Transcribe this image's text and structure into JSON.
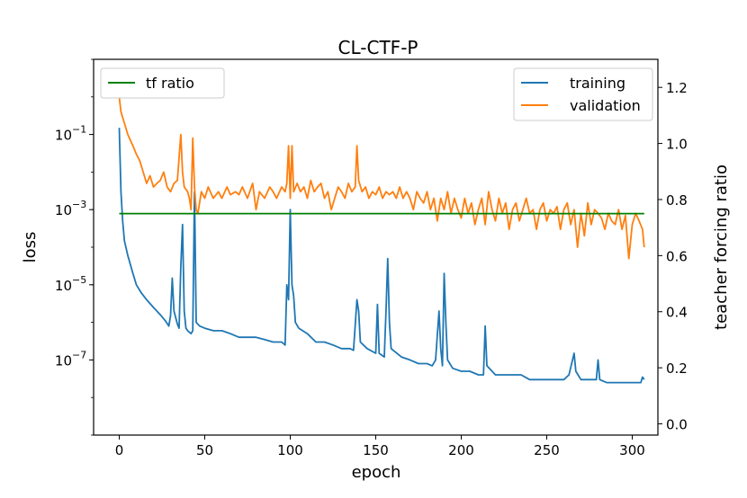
{
  "chart_data": {
    "type": "line",
    "title": "CL-CTF-P",
    "xlabel": "epoch",
    "ylabel": "loss",
    "y2label": "teacher forcing ratio",
    "xlim": [
      -15,
      315
    ],
    "ylim": [
      1e-09,
      10
    ],
    "yscale": "log",
    "y2lim": [
      -0.04,
      1.3
    ],
    "x_ticks": [
      0,
      50,
      100,
      150,
      200,
      250,
      300
    ],
    "x_tick_labels": [
      "0",
      "50",
      "100",
      "150",
      "200",
      "250",
      "300"
    ],
    "y_ticks": [
      0.1,
      0.001,
      1e-05,
      1e-07
    ],
    "y_tick_labels": [
      {
        "base": "10",
        "exp": "−1"
      },
      {
        "base": "10",
        "exp": "−3"
      },
      {
        "base": "10",
        "exp": "−5"
      },
      {
        "base": "10",
        "exp": "−7"
      }
    ],
    "y2_ticks": [
      0.0,
      0.2,
      0.4,
      0.6,
      0.8,
      1.0,
      1.2
    ],
    "y2_tick_labels": [
      "0.0",
      "0.2",
      "0.4",
      "0.6",
      "0.8",
      "1.0",
      "1.2"
    ],
    "legend_left": {
      "placement": "upper-left",
      "entries": [
        "tf ratio"
      ]
    },
    "legend_right": {
      "placement": "upper-right",
      "entries": [
        "training",
        "validation"
      ]
    },
    "grid": false,
    "series": [
      {
        "name": "training",
        "axis": "left",
        "color": "#1f77b4",
        "points": [
          [
            0,
            0.15
          ],
          [
            1,
            0.003
          ],
          [
            2,
            0.0005
          ],
          [
            3,
            0.00015
          ],
          [
            5,
            6e-05
          ],
          [
            8,
            2e-05
          ],
          [
            10,
            1e-05
          ],
          [
            13,
            6e-06
          ],
          [
            16,
            4e-06
          ],
          [
            20,
            2.5e-06
          ],
          [
            24,
            1.6e-06
          ],
          [
            27,
            1.1e-06
          ],
          [
            29,
            8e-07
          ],
          [
            30,
            1.5e-06
          ],
          [
            31,
            1.5e-05
          ],
          [
            32,
            2e-06
          ],
          [
            34,
            9e-07
          ],
          [
            35,
            7e-07
          ],
          [
            36,
            3e-05
          ],
          [
            37,
            0.0004
          ],
          [
            38,
            2e-06
          ],
          [
            39,
            7e-07
          ],
          [
            40,
            6e-07
          ],
          [
            42,
            5e-07
          ],
          [
            43,
            6e-07
          ],
          [
            44,
            0.003
          ],
          [
            45,
            1e-06
          ],
          [
            47,
            8e-07
          ],
          [
            50,
            7e-07
          ],
          [
            55,
            6e-07
          ],
          [
            60,
            6e-07
          ],
          [
            65,
            5e-07
          ],
          [
            70,
            4e-07
          ],
          [
            75,
            4e-07
          ],
          [
            80,
            4e-07
          ],
          [
            85,
            3.5e-07
          ],
          [
            90,
            3e-07
          ],
          [
            95,
            3e-07
          ],
          [
            97,
            2.5e-07
          ],
          [
            98,
            1e-05
          ],
          [
            99,
            4e-06
          ],
          [
            100,
            0.001
          ],
          [
            101,
            1e-05
          ],
          [
            102,
            5e-06
          ],
          [
            103,
            1e-06
          ],
          [
            105,
            7e-07
          ],
          [
            110,
            5e-07
          ],
          [
            115,
            3e-07
          ],
          [
            120,
            3e-07
          ],
          [
            125,
            2.5e-07
          ],
          [
            130,
            2e-07
          ],
          [
            135,
            2e-07
          ],
          [
            137,
            1.8e-07
          ],
          [
            139,
            4e-06
          ],
          [
            140,
            2e-06
          ],
          [
            141,
            3e-07
          ],
          [
            145,
            2e-07
          ],
          [
            150,
            1.5e-07
          ],
          [
            151,
            3e-06
          ],
          [
            152,
            1.5e-07
          ],
          [
            155,
            1.2e-07
          ],
          [
            156,
            2e-06
          ],
          [
            157,
            5e-05
          ],
          [
            158,
            1e-06
          ],
          [
            159,
            2e-07
          ],
          [
            165,
            1.2e-07
          ],
          [
            170,
            1e-07
          ],
          [
            175,
            8e-08
          ],
          [
            180,
            8e-08
          ],
          [
            183,
            7e-08
          ],
          [
            185,
            1e-07
          ],
          [
            187,
            2e-06
          ],
          [
            188,
            2e-07
          ],
          [
            189,
            7e-08
          ],
          [
            190,
            2e-05
          ],
          [
            191,
            1e-06
          ],
          [
            192,
            1e-07
          ],
          [
            195,
            6e-08
          ],
          [
            200,
            5e-08
          ],
          [
            205,
            5e-08
          ],
          [
            210,
            4e-08
          ],
          [
            213,
            4e-08
          ],
          [
            214,
            8e-07
          ],
          [
            215,
            7e-08
          ],
          [
            220,
            4e-08
          ],
          [
            225,
            4e-08
          ],
          [
            230,
            4e-08
          ],
          [
            235,
            4e-08
          ],
          [
            240,
            3e-08
          ],
          [
            245,
            3e-08
          ],
          [
            250,
            3e-08
          ],
          [
            255,
            3e-08
          ],
          [
            260,
            3e-08
          ],
          [
            263,
            4e-08
          ],
          [
            266,
            1.5e-07
          ],
          [
            267,
            5e-08
          ],
          [
            270,
            3e-08
          ],
          [
            275,
            3e-08
          ],
          [
            279,
            3e-08
          ],
          [
            280,
            1e-07
          ],
          [
            281,
            3e-08
          ],
          [
            285,
            2.5e-08
          ],
          [
            290,
            2.5e-08
          ],
          [
            295,
            2.5e-08
          ],
          [
            300,
            2.5e-08
          ],
          [
            305,
            2.5e-08
          ],
          [
            306,
            3.5e-08
          ],
          [
            307,
            3e-08
          ]
        ]
      },
      {
        "name": "validation",
        "axis": "left",
        "color": "#ff7f0e",
        "points": [
          [
            0,
            1
          ],
          [
            1,
            0.4
          ],
          [
            3,
            0.2
          ],
          [
            5,
            0.1
          ],
          [
            8,
            0.05
          ],
          [
            10,
            0.03
          ],
          [
            12,
            0.02
          ],
          [
            14,
            0.01
          ],
          [
            16,
            0.005
          ],
          [
            18,
            0.008
          ],
          [
            20,
            0.004
          ],
          [
            22,
            0.005
          ],
          [
            24,
            0.006
          ],
          [
            26,
            0.01
          ],
          [
            28,
            0.004
          ],
          [
            30,
            0.003
          ],
          [
            32,
            0.005
          ],
          [
            34,
            0.006
          ],
          [
            36,
            0.1
          ],
          [
            37,
            0.01
          ],
          [
            38,
            0.004
          ],
          [
            40,
            0.003
          ],
          [
            41,
            0.002
          ],
          [
            42,
            0.001
          ],
          [
            43,
            0.08
          ],
          [
            44,
            0.004
          ],
          [
            45,
            0.001
          ],
          [
            46,
            0.0008
          ],
          [
            48,
            0.003
          ],
          [
            50,
            0.002
          ],
          [
            52,
            0.004
          ],
          [
            55,
            0.002
          ],
          [
            58,
            0.003
          ],
          [
            60,
            0.002
          ],
          [
            63,
            0.004
          ],
          [
            65,
            0.0025
          ],
          [
            68,
            0.003
          ],
          [
            70,
            0.0025
          ],
          [
            72,
            0.004
          ],
          [
            75,
            0.002
          ],
          [
            78,
            0.005
          ],
          [
            80,
            0.001
          ],
          [
            82,
            0.003
          ],
          [
            85,
            0.002
          ],
          [
            88,
            0.004
          ],
          [
            90,
            0.003
          ],
          [
            92,
            0.002
          ],
          [
            95,
            0.004
          ],
          [
            97,
            0.003
          ],
          [
            98,
            0.005
          ],
          [
            99,
            0.05
          ],
          [
            100,
            0.002
          ],
          [
            101,
            0.05
          ],
          [
            102,
            0.003
          ],
          [
            104,
            0.005
          ],
          [
            106,
            0.003
          ],
          [
            108,
            0.004
          ],
          [
            110,
            0.002
          ],
          [
            112,
            0.006
          ],
          [
            114,
            0.003
          ],
          [
            116,
            0.004
          ],
          [
            118,
            0.005
          ],
          [
            120,
            0.002
          ],
          [
            122,
            0.003
          ],
          [
            124,
            0.001
          ],
          [
            126,
            0.002
          ],
          [
            128,
            0.004
          ],
          [
            130,
            0.003
          ],
          [
            132,
            0.002
          ],
          [
            134,
            0.005
          ],
          [
            136,
            0.003
          ],
          [
            138,
            0.004
          ],
          [
            139,
            0.05
          ],
          [
            140,
            0.006
          ],
          [
            142,
            0.003
          ],
          [
            144,
            0.004
          ],
          [
            146,
            0.002
          ],
          [
            148,
            0.003
          ],
          [
            150,
            0.0025
          ],
          [
            152,
            0.004
          ],
          [
            154,
            0.002
          ],
          [
            156,
            0.003
          ],
          [
            158,
            0.0025
          ],
          [
            160,
            0.003
          ],
          [
            162,
            0.002
          ],
          [
            164,
            0.004
          ],
          [
            166,
            0.002
          ],
          [
            168,
            0.003
          ],
          [
            170,
            0.002
          ],
          [
            172,
            0.001
          ],
          [
            174,
            0.003
          ],
          [
            176,
            0.002
          ],
          [
            178,
            0.0015
          ],
          [
            180,
            0.003
          ],
          [
            182,
            0.001
          ],
          [
            184,
            0.002
          ],
          [
            186,
            0.0005
          ],
          [
            188,
            0.002
          ],
          [
            190,
            0.001
          ],
          [
            192,
            0.003
          ],
          [
            194,
            0.0008
          ],
          [
            196,
            0.002
          ],
          [
            198,
            0.001
          ],
          [
            200,
            0.0006
          ],
          [
            202,
            0.002
          ],
          [
            204,
            0.0008
          ],
          [
            206,
            0.0015
          ],
          [
            208,
            0.0004
          ],
          [
            210,
            0.001
          ],
          [
            212,
            0.002
          ],
          [
            214,
            0.0004
          ],
          [
            216,
            0.003
          ],
          [
            218,
            0.001
          ],
          [
            220,
            0.0005
          ],
          [
            222,
            0.002
          ],
          [
            224,
            0.0008
          ],
          [
            226,
            0.0015
          ],
          [
            228,
            0.0003
          ],
          [
            230,
            0.001
          ],
          [
            232,
            0.0015
          ],
          [
            234,
            0.0005
          ],
          [
            236,
            0.001
          ],
          [
            238,
            0.002
          ],
          [
            240,
            0.0008
          ],
          [
            242,
            0.001
          ],
          [
            244,
            0.0003
          ],
          [
            246,
            0.001
          ],
          [
            248,
            0.0015
          ],
          [
            250,
            0.0005
          ],
          [
            252,
            0.001
          ],
          [
            254,
            0.0008
          ],
          [
            256,
            0.0012
          ],
          [
            258,
            0.0003
          ],
          [
            260,
            0.001
          ],
          [
            262,
            0.0015
          ],
          [
            264,
            0.0004
          ],
          [
            266,
            0.001
          ],
          [
            268,
            0.0001
          ],
          [
            270,
            0.0008
          ],
          [
            272,
            0.0002
          ],
          [
            274,
            0.0015
          ],
          [
            276,
            0.0004
          ],
          [
            278,
            0.001
          ],
          [
            280,
            0.0008
          ],
          [
            282,
            0.0006
          ],
          [
            284,
            0.0003
          ],
          [
            286,
            0.0008
          ],
          [
            288,
            0.0005
          ],
          [
            290,
            0.0004
          ],
          [
            292,
            0.001
          ],
          [
            294,
            0.0003
          ],
          [
            296,
            0.0007
          ],
          [
            298,
            5e-05
          ],
          [
            300,
            0.0004
          ],
          [
            302,
            0.0008
          ],
          [
            304,
            0.0005
          ],
          [
            306,
            0.0003
          ],
          [
            307,
            0.0001
          ]
        ]
      },
      {
        "name": "tf ratio",
        "axis": "right",
        "color": "#008000",
        "points": [
          [
            0,
            0.75
          ],
          [
            307,
            0.75
          ]
        ]
      }
    ]
  }
}
